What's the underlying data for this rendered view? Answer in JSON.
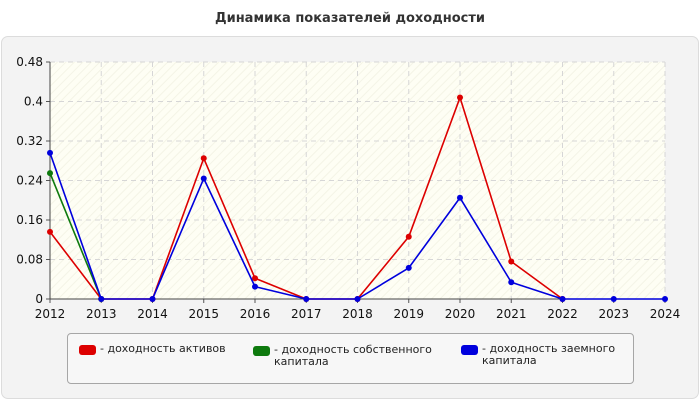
{
  "title": "Динамика показателей доходности",
  "colors": {
    "assets": "#dd0000",
    "equity": "#0e7a0e",
    "debt": "#0000dd"
  },
  "legend": [
    {
      "label": "- доходность активов",
      "color": "#dd0000"
    },
    {
      "label": "- доходность собственного капитала",
      "color": "#0e7a0e"
    },
    {
      "label": "- доходность заемного капитала",
      "color": "#0000dd"
    }
  ],
  "chart_data": {
    "type": "line",
    "title": "Динамика показателей доходности",
    "xlabel": "",
    "ylabel": "",
    "categories": [
      "2012",
      "2013",
      "2014",
      "2015",
      "2016",
      "2017",
      "2018",
      "2019",
      "2020",
      "2021",
      "2022",
      "2023",
      "2024"
    ],
    "yticks": [
      "0",
      "0.08",
      "0.16",
      "0.24",
      "0.32",
      "0.4",
      "0.48"
    ],
    "ylim": [
      0,
      0.48
    ],
    "grid": true,
    "legend_position": "bottom",
    "series": [
      {
        "name": "- доходность активов",
        "color": "#dd0000",
        "values": [
          0.136,
          0,
          0,
          0.285,
          0.042,
          0,
          0,
          0.126,
          0.408,
          0.076,
          0,
          null,
          null
        ]
      },
      {
        "name": "- доходность собственного капитала",
        "color": "#0e7a0e",
        "values": [
          0.255,
          0,
          null,
          null,
          null,
          null,
          null,
          null,
          null,
          null,
          null,
          null,
          null
        ]
      },
      {
        "name": "- доходность заемного капитала",
        "color": "#0000dd",
        "values": [
          0.296,
          0,
          0,
          0.244,
          0.025,
          0,
          0,
          0.063,
          0.205,
          0.034,
          0,
          0,
          0
        ]
      }
    ]
  }
}
